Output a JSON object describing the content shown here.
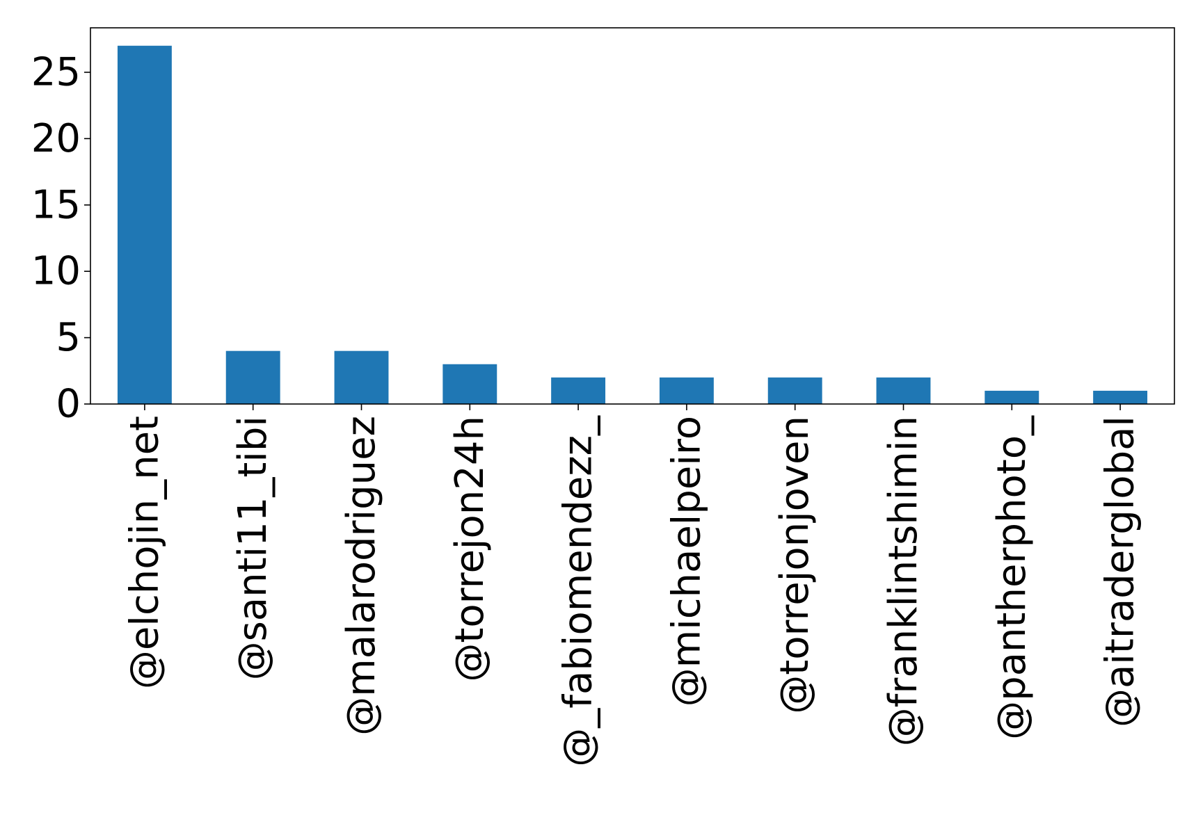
{
  "chart_data": {
    "type": "bar",
    "categories": [
      "@elchojin_net",
      "@santi11_tibi",
      "@malarodriguez",
      "@torrejon24h",
      "@_fabiomendezz_",
      "@michaelpeiro",
      "@torrejonjoven",
      "@franklintshimin",
      "@pantherphoto_",
      "@aitraderglobal"
    ],
    "values": [
      27,
      4,
      4,
      3,
      2,
      2,
      2,
      2,
      1,
      1
    ],
    "ylim": [
      0,
      28.35
    ],
    "yticks": [
      0,
      5,
      10,
      15,
      20,
      25
    ],
    "xlabel": "",
    "ylabel": "",
    "title": "",
    "grid": false,
    "colors": {
      "bar": "#1f77b4",
      "axis": "#000000"
    }
  }
}
